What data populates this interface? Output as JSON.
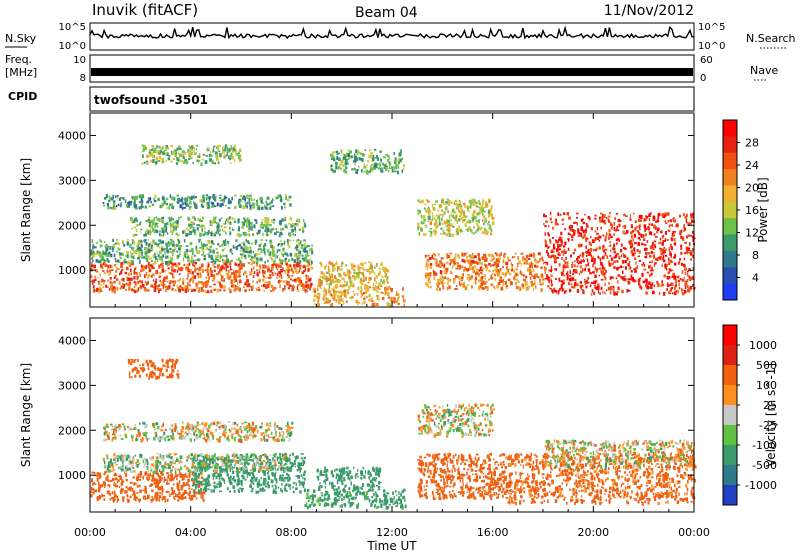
{
  "header": {
    "station": "Inuvik (fitACF)",
    "beam": "Beam 04",
    "date": "11/Nov/2012"
  },
  "strip_panels": {
    "nsky_label": "N.Sky",
    "nsky_ticks": [
      "10^5",
      "10^0"
    ],
    "nsearch_label": "N.Search",
    "nsearch_ticks": [
      "10^5",
      "10^0"
    ],
    "freq_label_line1": "Freq.",
    "freq_label_line2": "[MHz]",
    "freq_ticks": [
      "10",
      "8"
    ],
    "nave_label": "Nave",
    "nave_ticks": [
      "60",
      "0"
    ],
    "cpid_label": "CPID",
    "cpid_value": "twofsound -3501"
  },
  "chart_data": [
    {
      "type": "heatmap",
      "name": "power",
      "ylabel": "Slant Range [km]",
      "xlabel": "",
      "x_ticks": [
        "00:00",
        "04:00",
        "08:00",
        "12:00",
        "16:00",
        "20:00",
        "00:00"
      ],
      "x_range_hours": [
        0,
        24
      ],
      "y_ticks": [
        1000,
        2000,
        3000,
        4000
      ],
      "y_range_km": [
        180,
        4500
      ],
      "colorbar": {
        "label": "Power [dB]",
        "ticks": [
          4,
          8,
          12,
          16,
          20,
          24,
          28
        ],
        "colors": [
          "#1e3cf0",
          "#2a4fb0",
          "#2f7a8a",
          "#3a9a6a",
          "#6cc24a",
          "#c8c83a",
          "#f0b030",
          "#f08020",
          "#f05010",
          "#e82010",
          "#ff0000"
        ]
      },
      "regions": [
        {
          "t": [
            0.0,
            8.8
          ],
          "r": [
            550,
            1200
          ],
          "value": 24
        },
        {
          "t": [
            0.0,
            8.8
          ],
          "r": [
            1200,
            1700
          ],
          "value": 12
        },
        {
          "t": [
            8.8,
            12.5
          ],
          "r": [
            250,
            650
          ],
          "value": 20
        },
        {
          "t": [
            9.0,
            11.8
          ],
          "r": [
            650,
            1200
          ],
          "value": 18
        },
        {
          "t": [
            13.3,
            18.0
          ],
          "r": [
            600,
            1400
          ],
          "value": 22
        },
        {
          "t": [
            18.0,
            24.0
          ],
          "r": [
            500,
            2300
          ],
          "value": 28
        },
        {
          "t": [
            1.5,
            8.5
          ],
          "r": [
            1800,
            2200
          ],
          "value": 12
        },
        {
          "t": [
            0.5,
            8.0
          ],
          "r": [
            2400,
            2700
          ],
          "value": 10
        },
        {
          "t": [
            2.0,
            6.0
          ],
          "r": [
            3400,
            3800
          ],
          "value": 14
        },
        {
          "t": [
            9.5,
            12.5
          ],
          "r": [
            3200,
            3700
          ],
          "value": 12
        },
        {
          "t": [
            13.0,
            16.0
          ],
          "r": [
            1800,
            2600
          ],
          "value": 16
        }
      ]
    },
    {
      "type": "heatmap",
      "name": "velocity",
      "ylabel": "Slant Range [km]",
      "xlabel": "Time UT",
      "x_ticks": [
        "00:00",
        "04:00",
        "08:00",
        "12:00",
        "16:00",
        "20:00",
        "00:00"
      ],
      "x_range_hours": [
        0,
        24
      ],
      "y_ticks": [
        1000,
        2000,
        3000,
        4000
      ],
      "y_range_km": [
        180,
        4500
      ],
      "colorbar": {
        "label": "Velocity [m s^-1]",
        "ticks": [
          1000,
          500,
          100,
          25,
          -25,
          -100,
          -500,
          -1000
        ],
        "colors": [
          "#2040c0",
          "#2f7a8a",
          "#3a9a6a",
          "#60c040",
          "#c8c8c8",
          "#ff9020",
          "#f06010",
          "#e02010",
          "#ff0000"
        ]
      },
      "regions": [
        {
          "t": [
            0.0,
            4.5
          ],
          "r": [
            450,
            1100
          ],
          "value": -300
        },
        {
          "t": [
            4.0,
            8.5
          ],
          "r": [
            650,
            1500
          ],
          "value": 300
        },
        {
          "t": [
            0.5,
            8.0
          ],
          "r": [
            1100,
            1500
          ],
          "value": 60
        },
        {
          "t": [
            8.5,
            12.5
          ],
          "r": [
            300,
            700
          ],
          "value": 200
        },
        {
          "t": [
            9.0,
            11.5
          ],
          "r": [
            700,
            1200
          ],
          "value": 300
        },
        {
          "t": [
            13.0,
            16.5
          ],
          "r": [
            500,
            1500
          ],
          "value": -300
        },
        {
          "t": [
            16.5,
            24.0
          ],
          "r": [
            400,
            1500
          ],
          "value": -200
        },
        {
          "t": [
            18.0,
            24.0
          ],
          "r": [
            1200,
            1800
          ],
          "value": 0
        },
        {
          "t": [
            0.5,
            8.0
          ],
          "r": [
            1800,
            2200
          ],
          "value": 0
        },
        {
          "t": [
            1.5,
            3.5
          ],
          "r": [
            3200,
            3600
          ],
          "value": -300
        },
        {
          "t": [
            13.0,
            16.0
          ],
          "r": [
            1900,
            2600
          ],
          "value": 0
        }
      ]
    }
  ]
}
